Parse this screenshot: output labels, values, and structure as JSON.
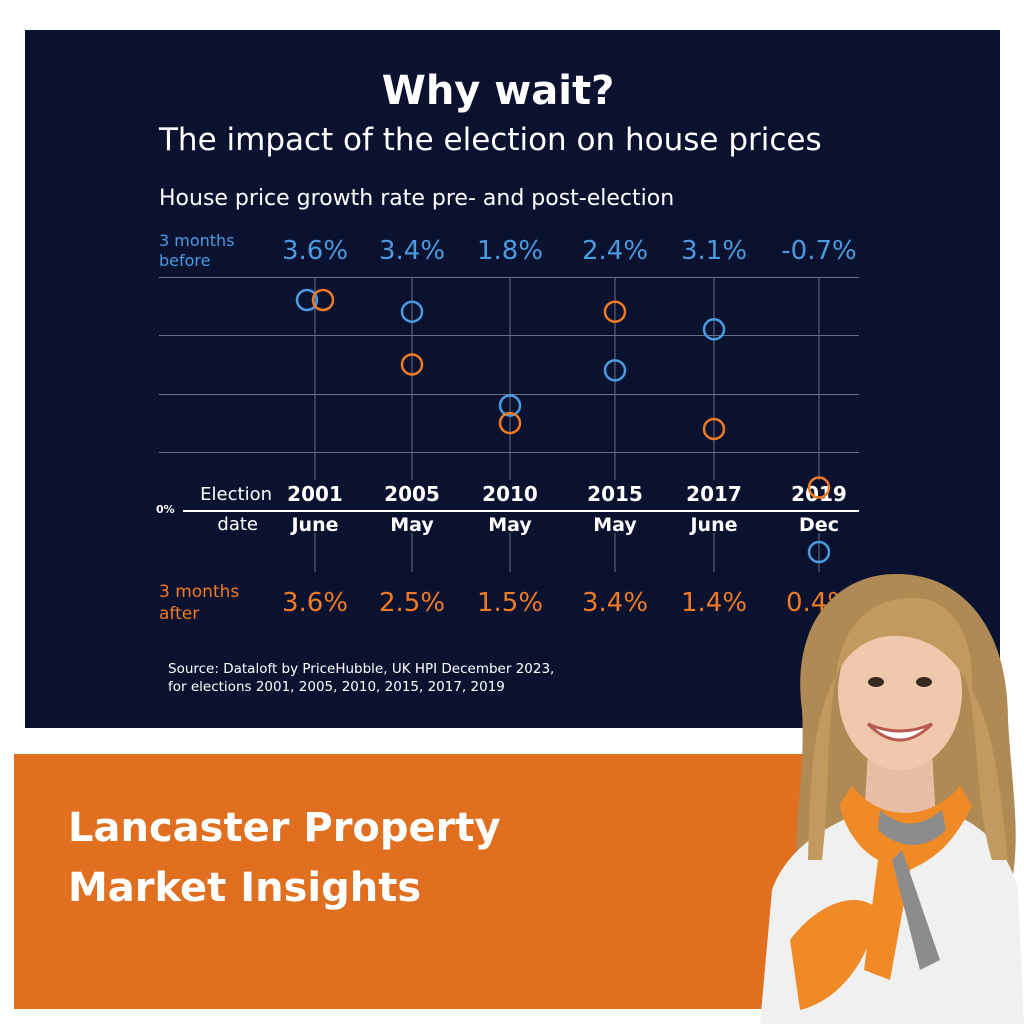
{
  "chart_data": {
    "type": "scatter",
    "title": "Why wait?",
    "subtitle": "The impact of the election on house prices",
    "chart_caption": "House price growth rate pre- and post-election",
    "zero_label": "0%",
    "row_labels": {
      "before": [
        "3 months",
        "before"
      ],
      "after": [
        "3 months",
        "after"
      ],
      "election": "Election",
      "date": "date"
    },
    "elections": [
      {
        "year": "2001",
        "month": "June"
      },
      {
        "year": "2005",
        "month": "May"
      },
      {
        "year": "2010",
        "month": "May"
      },
      {
        "year": "2015",
        "month": "May"
      },
      {
        "year": "2017",
        "month": "June"
      },
      {
        "year": "2019",
        "month": "Dec"
      }
    ],
    "series": [
      {
        "key": "before",
        "color": "#4a9be0",
        "values": [
          3.6,
          3.4,
          1.8,
          2.4,
          3.1,
          -0.7
        ],
        "labels": [
          "3.6%",
          "3.4%",
          "1.8%",
          "2.4%",
          "3.1%",
          "-0.7%"
        ]
      },
      {
        "key": "after",
        "color": "#ef7b26",
        "values": [
          3.6,
          2.5,
          1.5,
          3.4,
          1.4,
          0.4
        ],
        "labels": [
          "3.6%",
          "2.5%",
          "1.5%",
          "3.4%",
          "1.4%",
          "0.4%"
        ]
      }
    ],
    "ylim": [
      -0.8,
      4.0
    ],
    "grid": true,
    "source": [
      "Source: Dataloft by PriceHubble, UK HPI December 2023,",
      "for elections 2001, 2005, 2010, 2015, 2017, 2019"
    ]
  },
  "banner": {
    "line1": "Lancaster Property",
    "line2": "Market Insights",
    "color": "#e06f20"
  },
  "portrait": {
    "icon": "woman-portrait-icon"
  }
}
